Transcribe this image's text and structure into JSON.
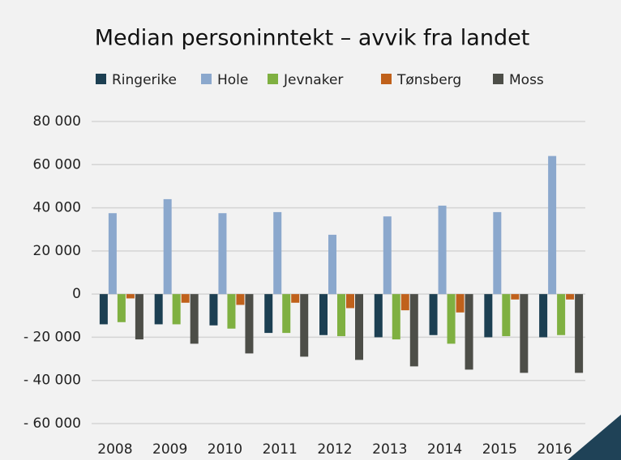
{
  "chart_data": {
    "type": "bar",
    "title": "Median personinntekt – avvik fra landet",
    "categories": [
      "2008",
      "2009",
      "2010",
      "2011",
      "2012",
      "2013",
      "2014",
      "2015",
      "2016"
    ],
    "series": [
      {
        "name": "Ringerike",
        "color": "#1c3f52",
        "values": [
          -14000,
          -14000,
          -14500,
          -18000,
          -19000,
          -20000,
          -19000,
          -20000,
          -20000
        ]
      },
      {
        "name": "Hole",
        "color": "#8ba8cd",
        "values": [
          37500,
          44000,
          37500,
          38000,
          27500,
          36000,
          41000,
          38000,
          64000
        ]
      },
      {
        "name": "Jevnaker",
        "color": "#7fb041",
        "values": [
          -13000,
          -14000,
          -16000,
          -18000,
          -19500,
          -21000,
          -23000,
          -19500,
          -19000
        ]
      },
      {
        "name": "Tønsberg",
        "color": "#c0611b",
        "values": [
          -2000,
          -4000,
          -5000,
          -4000,
          -6500,
          -7500,
          -8500,
          -2500,
          -2500
        ]
      },
      {
        "name": "Moss",
        "color": "#4d4e48",
        "values": [
          -21000,
          -23000,
          -27500,
          -29000,
          -30500,
          -33500,
          -35000,
          -36500,
          -36500
        ]
      }
    ],
    "ylim": [
      -60000,
      80000
    ],
    "yticks": [
      {
        "value": -60000,
        "label": "- 60 000"
      },
      {
        "value": -40000,
        "label": "- 40 000"
      },
      {
        "value": -20000,
        "label": "- 20 000"
      },
      0,
      {
        "value": 20000,
        "label": "20 000"
      },
      {
        "value": 40000,
        "label": "40 000"
      },
      {
        "value": 60000,
        "label": "60 000"
      },
      {
        "value": 80000,
        "label": "80 000"
      }
    ],
    "grid": true
  }
}
